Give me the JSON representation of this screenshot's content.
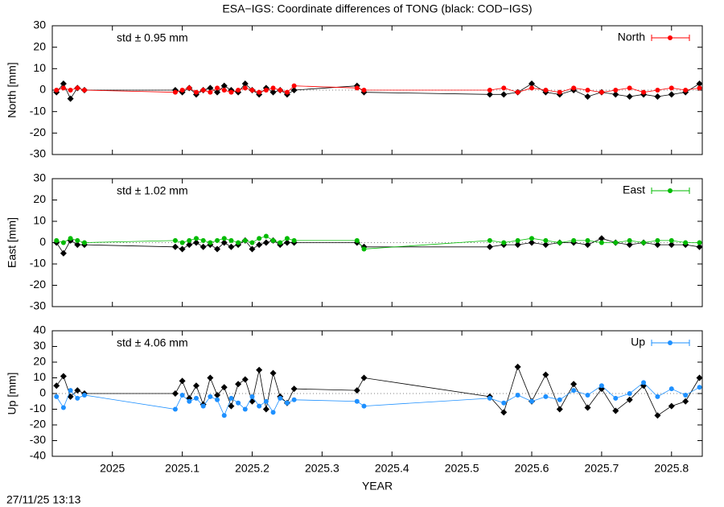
{
  "chart_data": [
    {
      "type": "line",
      "title": "ESA−IGS: Coordinate differences of TONG (black: COD−IGS)",
      "ylabel": "North [mm]",
      "annotation": "std ± 0.95 mm",
      "zero_line": true,
      "x": [
        2024.92,
        2024.93,
        2024.94,
        2024.95,
        2024.96,
        2025.09,
        2025.1,
        2025.11,
        2025.12,
        2025.13,
        2025.14,
        2025.15,
        2025.16,
        2025.17,
        2025.18,
        2025.19,
        2025.2,
        2025.21,
        2025.22,
        2025.23,
        2025.24,
        2025.25,
        2025.26,
        2025.35,
        2025.36,
        2025.54,
        2025.56,
        2025.58,
        2025.6,
        2025.62,
        2025.64,
        2025.66,
        2025.68,
        2025.7,
        2025.72,
        2025.74,
        2025.76,
        2025.78,
        2025.8,
        2025.82,
        2025.84
      ],
      "series": [
        {
          "color": "#000000",
          "values": [
            -1,
            3,
            -4,
            1,
            0,
            0,
            -1,
            1,
            -2,
            0,
            1,
            -1,
            2,
            0,
            -1,
            3,
            0,
            -2,
            1,
            -1,
            0,
            -2,
            0,
            2,
            -1,
            -2,
            -2,
            -1,
            3,
            -1,
            -2,
            0,
            -3,
            -1,
            -2,
            -3,
            -2,
            -3,
            -2,
            -1,
            3
          ]
        },
        {
          "name": "North",
          "color": "#ff0000",
          "values": [
            0,
            1,
            0,
            1,
            0,
            -1,
            0,
            1,
            -1,
            0,
            -1,
            1,
            0,
            -1,
            0,
            1,
            0,
            -1,
            0,
            1,
            0,
            -1,
            2,
            1,
            0,
            0,
            1,
            -1,
            1,
            0,
            -1,
            1,
            0,
            -1,
            0,
            1,
            -1,
            0,
            1,
            0,
            1
          ]
        }
      ],
      "xlim": [
        2024.914,
        2025.844
      ],
      "xticks": [
        2025,
        2025.1,
        2025.2,
        2025.3,
        2025.4,
        2025.5,
        2025.6,
        2025.7,
        2025.8
      ],
      "ylim": [
        -30,
        30
      ],
      "yticks": [
        -30,
        -20,
        -10,
        0,
        10,
        20,
        30
      ]
    },
    {
      "type": "line",
      "ylabel": "East [mm]",
      "annotation": "std ± 1.02 mm",
      "zero_line": true,
      "x": [
        2024.92,
        2024.93,
        2024.94,
        2024.95,
        2024.96,
        2025.09,
        2025.1,
        2025.11,
        2025.12,
        2025.13,
        2025.14,
        2025.15,
        2025.16,
        2025.17,
        2025.18,
        2025.19,
        2025.2,
        2025.21,
        2025.22,
        2025.23,
        2025.24,
        2025.25,
        2025.26,
        2025.35,
        2025.36,
        2025.54,
        2025.56,
        2025.58,
        2025.6,
        2025.62,
        2025.64,
        2025.66,
        2025.68,
        2025.7,
        2025.72,
        2025.74,
        2025.76,
        2025.78,
        2025.8,
        2025.82,
        2025.84
      ],
      "series": [
        {
          "color": "#000000",
          "values": [
            0,
            -5,
            1,
            -1,
            -1,
            -2,
            -3,
            -1,
            0,
            -2,
            -1,
            -3,
            0,
            -2,
            -1,
            1,
            -3,
            -1,
            0,
            1,
            -1,
            0,
            0,
            0,
            -2,
            -2,
            -1,
            -1,
            0,
            -1,
            0,
            0,
            -1,
            2,
            0,
            -1,
            0,
            -1,
            -1,
            -1,
            -2
          ]
        },
        {
          "name": "East",
          "color": "#00bb00",
          "values": [
            1,
            0,
            2,
            1,
            0,
            1,
            0,
            1,
            2,
            1,
            0,
            1,
            2,
            1,
            0,
            1,
            0,
            2,
            3,
            1,
            0,
            2,
            1,
            1,
            -3,
            1,
            0,
            1,
            2,
            1,
            0,
            1,
            1,
            0,
            0,
            1,
            0,
            1,
            1,
            0,
            0
          ]
        }
      ],
      "xlim": [
        2024.914,
        2025.844
      ],
      "xticks": [
        2025,
        2025.1,
        2025.2,
        2025.3,
        2025.4,
        2025.5,
        2025.6,
        2025.7,
        2025.8
      ],
      "ylim": [
        -30,
        30
      ],
      "yticks": [
        -30,
        -20,
        -10,
        0,
        10,
        20,
        30
      ]
    },
    {
      "type": "line",
      "ylabel": "Up [mm]",
      "annotation": "std ± 4.06 mm",
      "zero_line": true,
      "xlabel": "YEAR",
      "timestamp": "27/11/25 13:13",
      "x": [
        2024.92,
        2024.93,
        2024.94,
        2024.95,
        2024.96,
        2025.09,
        2025.1,
        2025.11,
        2025.12,
        2025.13,
        2025.14,
        2025.15,
        2025.16,
        2025.17,
        2025.18,
        2025.19,
        2025.2,
        2025.21,
        2025.22,
        2025.23,
        2025.24,
        2025.25,
        2025.26,
        2025.35,
        2025.36,
        2025.54,
        2025.56,
        2025.58,
        2025.6,
        2025.62,
        2025.64,
        2025.66,
        2025.68,
        2025.7,
        2025.72,
        2025.74,
        2025.76,
        2025.78,
        2025.8,
        2025.82,
        2025.84
      ],
      "series": [
        {
          "color": "#000000",
          "values": [
            5,
            11,
            -2,
            2,
            0,
            0,
            8,
            -3,
            5,
            -7,
            10,
            -1,
            4,
            -8,
            6,
            9,
            -5,
            15,
            -10,
            13,
            -2,
            -6,
            3,
            2,
            10,
            -2,
            -12,
            17,
            -5,
            12,
            -10,
            6,
            -9,
            3,
            -11,
            -4,
            5,
            -14,
            -8,
            -5,
            10
          ]
        },
        {
          "name": "Up",
          "color": "#1e90ff",
          "values": [
            -2,
            -9,
            2,
            -3,
            -1,
            -10,
            -1,
            -5,
            -3,
            -8,
            -2,
            -4,
            -14,
            -3,
            -6,
            -10,
            -2,
            -8,
            -5,
            -12,
            -3,
            -6,
            -4,
            -5,
            -8,
            -3,
            -6,
            -1,
            -5,
            -2,
            -4,
            2,
            -1,
            5,
            -3,
            0,
            7,
            -2,
            3,
            -1,
            4
          ]
        }
      ],
      "xlim": [
        2024.914,
        2025.844
      ],
      "xticks": [
        2025,
        2025.1,
        2025.2,
        2025.3,
        2025.4,
        2025.5,
        2025.6,
        2025.7,
        2025.8
      ],
      "ylim": [
        -40,
        40
      ],
      "yticks": [
        -40,
        -30,
        -20,
        -10,
        0,
        10,
        20,
        30,
        40
      ]
    }
  ]
}
